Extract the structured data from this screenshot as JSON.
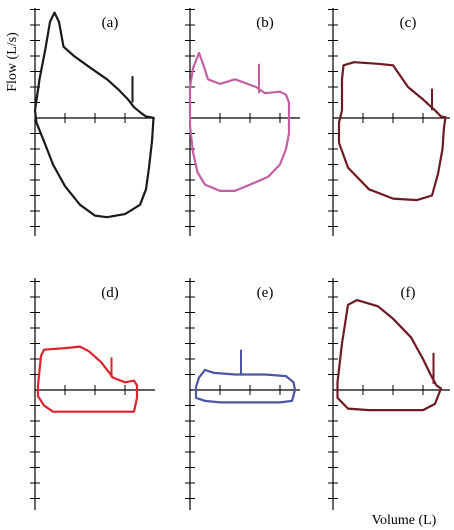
{
  "chart_data": {
    "type": "line",
    "xlabel": "Volume (L)",
    "ylabel": "Flow (L/s)",
    "panels": [
      {
        "label": "(a)",
        "color": "#1a1a1a",
        "loop": [
          [
            0,
            0.5
          ],
          [
            0.15,
            2.5
          ],
          [
            0.35,
            4.5
          ],
          [
            0.5,
            6.2
          ],
          [
            0.65,
            6.8
          ],
          [
            0.8,
            6.2
          ],
          [
            0.95,
            4.6
          ],
          [
            1.3,
            4.0
          ],
          [
            1.8,
            3.3
          ],
          [
            2.4,
            2.5
          ],
          [
            2.8,
            1.8
          ],
          [
            3.1,
            1.2
          ],
          [
            3.3,
            0.7
          ],
          [
            3.55,
            0.3
          ],
          [
            3.7,
            0.1
          ],
          [
            3.85,
            0.05
          ],
          [
            3.95,
            0
          ],
          [
            3.9,
            -1.5
          ],
          [
            3.8,
            -3.2
          ],
          [
            3.7,
            -4.6
          ],
          [
            3.5,
            -5.6
          ],
          [
            3.0,
            -6.2
          ],
          [
            2.4,
            -6.4
          ],
          [
            2.0,
            -6.3
          ],
          [
            1.5,
            -5.6
          ],
          [
            1.0,
            -4.4
          ],
          [
            0.6,
            -3.0
          ],
          [
            0.3,
            -1.5
          ],
          [
            0.05,
            -0.3
          ],
          [
            0,
            0.5
          ]
        ],
        "marker": {
          "x": 3.25,
          "y0": 1.0,
          "y1": 2.7
        }
      },
      {
        "label": "(b)",
        "color": "#c0609e",
        "loop": [
          [
            0,
            2.0
          ],
          [
            0.1,
            3.2
          ],
          [
            0.3,
            4.2
          ],
          [
            0.45,
            3.4
          ],
          [
            0.6,
            2.5
          ],
          [
            1.0,
            2.2
          ],
          [
            1.5,
            2.5
          ],
          [
            2.2,
            2.0
          ],
          [
            2.5,
            1.6
          ],
          [
            3.0,
            1.7
          ],
          [
            3.2,
            1.5
          ],
          [
            3.3,
            1.0
          ],
          [
            3.3,
            -1.0
          ],
          [
            3.2,
            -2.0
          ],
          [
            3.0,
            -3.0
          ],
          [
            2.6,
            -3.8
          ],
          [
            2.0,
            -4.3
          ],
          [
            1.5,
            -4.7
          ],
          [
            1.0,
            -4.7
          ],
          [
            0.5,
            -4.3
          ],
          [
            0.25,
            -3.5
          ],
          [
            0.1,
            -2.2
          ],
          [
            0.0,
            -0.5
          ],
          [
            0,
            2.0
          ]
        ],
        "marker": {
          "x": 2.3,
          "y0": 1.6,
          "y1": 3.5
        }
      },
      {
        "label": "(c)",
        "color": "#6e1a24",
        "loop": [
          [
            0.3,
            0.5
          ],
          [
            0.3,
            2.5
          ],
          [
            0.35,
            3.4
          ],
          [
            0.7,
            3.6
          ],
          [
            1.5,
            3.5
          ],
          [
            2.0,
            3.4
          ],
          [
            2.5,
            2.0
          ],
          [
            3.0,
            1.2
          ],
          [
            3.4,
            0.5
          ],
          [
            3.6,
            0.1
          ],
          [
            3.75,
            0.05
          ],
          [
            3.7,
            -0.6
          ],
          [
            3.65,
            -2.0
          ],
          [
            3.5,
            -3.6
          ],
          [
            3.3,
            -5.0
          ],
          [
            2.8,
            -5.3
          ],
          [
            2.0,
            -5.2
          ],
          [
            1.2,
            -4.6
          ],
          [
            0.5,
            -3.2
          ],
          [
            0.2,
            -1.6
          ],
          [
            0.2,
            -0.3
          ],
          [
            0.3,
            0.5
          ]
        ],
        "marker": {
          "x": 3.3,
          "y0": 0.5,
          "y1": 1.9
        }
      },
      {
        "label": "(d)",
        "color": "#d9232d",
        "loop": [
          [
            0.1,
            0.3
          ],
          [
            0.2,
            2.2
          ],
          [
            0.3,
            2.6
          ],
          [
            1.0,
            2.7
          ],
          [
            1.5,
            2.8
          ],
          [
            1.8,
            2.5
          ],
          [
            2.2,
            1.8
          ],
          [
            2.6,
            0.8
          ],
          [
            3.0,
            0.5
          ],
          [
            3.3,
            0.6
          ],
          [
            3.4,
            0.3
          ],
          [
            3.4,
            -0.5
          ],
          [
            3.3,
            -1.4
          ],
          [
            2.8,
            -1.4
          ],
          [
            2.0,
            -1.4
          ],
          [
            1.2,
            -1.4
          ],
          [
            0.6,
            -1.4
          ],
          [
            0.3,
            -1.0
          ],
          [
            0.1,
            -0.4
          ],
          [
            0.1,
            0.3
          ]
        ],
        "marker": {
          "x": 2.55,
          "y0": 0.8,
          "y1": 2.1
        }
      },
      {
        "label": "(e)",
        "color": "#4a56a5",
        "loop": [
          [
            0.2,
            0.2
          ],
          [
            0.3,
            0.8
          ],
          [
            0.5,
            1.3
          ],
          [
            0.8,
            1.1
          ],
          [
            1.5,
            1.0
          ],
          [
            2.5,
            1.0
          ],
          [
            3.2,
            0.9
          ],
          [
            3.45,
            0.5
          ],
          [
            3.5,
            0
          ],
          [
            3.4,
            -0.7
          ],
          [
            3.0,
            -0.8
          ],
          [
            2.0,
            -0.8
          ],
          [
            1.0,
            -0.8
          ],
          [
            0.5,
            -0.7
          ],
          [
            0.2,
            -0.5
          ],
          [
            0.2,
            0.2
          ]
        ],
        "marker": {
          "x": 1.7,
          "y0": 1.0,
          "y1": 2.6
        }
      },
      {
        "label": "(f)",
        "color": "#6e1a24",
        "loop": [
          [
            0.15,
            0.5
          ],
          [
            0.3,
            3.0
          ],
          [
            0.5,
            5.5
          ],
          [
            0.8,
            5.8
          ],
          [
            1.5,
            5.4
          ],
          [
            2.0,
            4.6
          ],
          [
            2.6,
            3.4
          ],
          [
            3.0,
            2.0
          ],
          [
            3.25,
            1.0
          ],
          [
            3.45,
            0.3
          ],
          [
            3.6,
            0.1
          ],
          [
            3.4,
            -0.9
          ],
          [
            3.0,
            -1.3
          ],
          [
            2.0,
            -1.3
          ],
          [
            1.2,
            -1.3
          ],
          [
            0.5,
            -1.2
          ],
          [
            0.15,
            -0.5
          ],
          [
            0.15,
            0.5
          ]
        ],
        "marker": {
          "x": 3.35,
          "y0": 0.4,
          "y1": 2.4
        }
      }
    ],
    "xlim": [
      0,
      4.2
    ],
    "ylim": [
      -7,
      7
    ]
  }
}
